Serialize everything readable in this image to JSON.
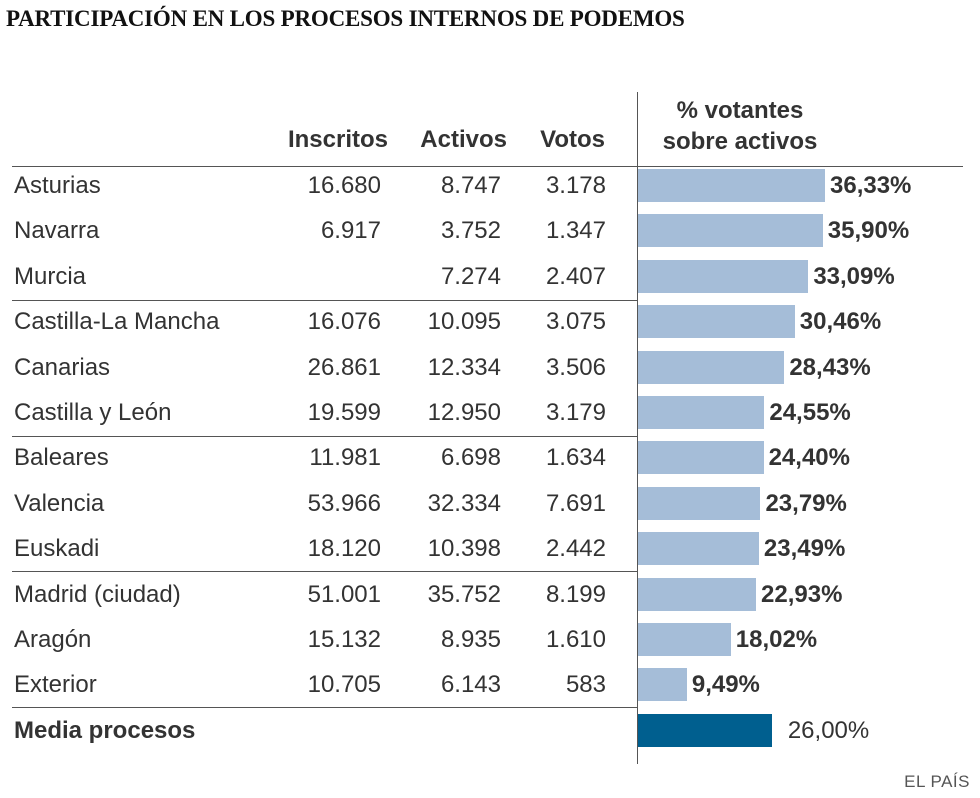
{
  "chart_data": {
    "type": "table",
    "title": "PARTICIPACIÓN EN LOS PROCESOS INTERNOS DE PODEMOS",
    "columns": [
      "Inscritos",
      "Activos",
      "Votos"
    ],
    "bar_header": [
      "% votantes",
      "sobre activos"
    ],
    "xlim": [
      0,
      40
    ],
    "rows": [
      {
        "name": "Asturias",
        "inscritos": "16.680",
        "activos": "8.747",
        "votos": "3.178",
        "pct": 36.33,
        "label": "36,33%"
      },
      {
        "name": "Navarra",
        "inscritos": "6.917",
        "activos": "3.752",
        "votos": "1.347",
        "pct": 35.9,
        "label": "35,90%"
      },
      {
        "name": "Murcia",
        "inscritos": "",
        "activos": "7.274",
        "votos": "2.407",
        "pct": 33.09,
        "label": "33,09%"
      },
      {
        "name": "Castilla-La Mancha",
        "inscritos": "16.076",
        "activos": "10.095",
        "votos": "3.075",
        "pct": 30.46,
        "label": "30,46%"
      },
      {
        "name": "Canarias",
        "inscritos": "26.861",
        "activos": "12.334",
        "votos": "3.506",
        "pct": 28.43,
        "label": "28,43%"
      },
      {
        "name": "Castilla y León",
        "inscritos": "19.599",
        "activos": "12.950",
        "votos": "3.179",
        "pct": 24.55,
        "label": "24,55%"
      },
      {
        "name": "Baleares",
        "inscritos": "11.981",
        "activos": "6.698",
        "votos": "1.634",
        "pct": 24.4,
        "label": "24,40%"
      },
      {
        "name": "Valencia",
        "inscritos": "53.966",
        "activos": "32.334",
        "votos": "7.691",
        "pct": 23.79,
        "label": "23,79%"
      },
      {
        "name": "Euskadi",
        "inscritos": "18.120",
        "activos": "10.398",
        "votos": "2.442",
        "pct": 23.49,
        "label": "23,49%"
      },
      {
        "name": "Madrid (ciudad)",
        "inscritos": "51.001",
        "activos": "35.752",
        "votos": "8.199",
        "pct": 22.93,
        "label": "22,93%"
      },
      {
        "name": "Aragón",
        "inscritos": "15.132",
        "activos": "8.935",
        "votos": "1.610",
        "pct": 18.02,
        "label": "18,02%"
      },
      {
        "name": "Exterior",
        "inscritos": "10.705",
        "activos": "6.143",
        "votos": "583",
        "pct": 9.49,
        "label": "9,49%"
      }
    ],
    "average": {
      "name": "Media procesos",
      "pct": 26.0,
      "label": "26,00%"
    },
    "colors": {
      "bar": "#a5bdd8",
      "average_bar": "#005f8f"
    }
  },
  "source": "EL PAÍS"
}
